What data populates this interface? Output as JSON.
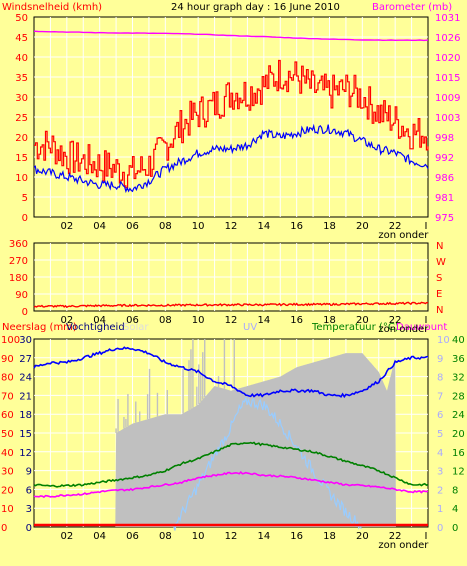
{
  "colors": {
    "background": "#ffff99",
    "plot_background": "#ffff99",
    "grid": "#ffffff",
    "frame": "#000000",
    "wind": "#0000ff",
    "gust": "#ff0000",
    "barometer": "#ff00ff",
    "humidity": "#0000ff",
    "rain": "#ff0000",
    "temperature": "#008000",
    "dewpoint": "#ff00ff",
    "solar": "#c0c0c0",
    "uv": "#99ccff",
    "wind_direction": "#ff0000",
    "left_axis_text": "#ff0000",
    "mid_axis_text": "#000080",
    "right_axis_text": "#ff00ff",
    "temp_axis_text": "#008000",
    "uv_title": "#aaaaff",
    "solar_title": "#dddddd"
  },
  "chart_data": [
    {
      "id": "wind-baro",
      "type": "line",
      "title": "24 hour graph day : 16 June 2010",
      "left_label": "Windsnelheid (kmh)",
      "right_label": "Barometer (mb)",
      "left_ticks": [
        0,
        5,
        10,
        15,
        20,
        25,
        30,
        35,
        40,
        45,
        50
      ],
      "left_range": [
        0,
        50
      ],
      "right_ticks": [
        975,
        981,
        986,
        992,
        998,
        1003,
        1009,
        1015,
        1020,
        1026,
        1031
      ],
      "right_range": [
        975,
        1031
      ],
      "x_ticks": [
        "02",
        "04",
        "06",
        "08",
        "10",
        "12",
        "14",
        "16",
        "18",
        "20",
        "22",
        "I"
      ],
      "x_note": "zon onder",
      "series": [
        {
          "key": "wind_avg",
          "axis": "left",
          "hours": [
            0,
            1,
            2,
            3,
            4,
            5,
            6,
            7,
            8,
            9,
            10,
            11,
            12,
            13,
            14,
            15,
            16,
            17,
            18,
            19,
            20,
            21,
            22,
            23,
            24
          ],
          "values": [
            12,
            11,
            10,
            9,
            8,
            8,
            7,
            9,
            12,
            14,
            16,
            17,
            17,
            18,
            21,
            20,
            21,
            22,
            22,
            21,
            19,
            17,
            16,
            14,
            13
          ]
        },
        {
          "key": "wind_gust",
          "axis": "left",
          "hours": [
            0,
            1,
            2,
            3,
            4,
            5,
            6,
            7,
            8,
            9,
            10,
            11,
            12,
            13,
            14,
            15,
            16,
            17,
            18,
            19,
            20,
            21,
            22,
            23,
            24
          ],
          "values": [
            18,
            18,
            15,
            14,
            13,
            12,
            11,
            13,
            18,
            23,
            26,
            28,
            31,
            31,
            33,
            36,
            35,
            32,
            31,
            32,
            30,
            26,
            24,
            21,
            21
          ]
        },
        {
          "key": "barometer",
          "axis": "right",
          "hours": [
            0,
            2,
            4,
            6,
            8,
            10,
            12,
            14,
            16,
            18,
            20,
            22,
            24
          ],
          "values": [
            1027,
            1026.8,
            1026.6,
            1026.5,
            1026.4,
            1026.2,
            1025.8,
            1025.5,
            1025.1,
            1024.8,
            1024.6,
            1024.5,
            1024.5
          ]
        }
      ]
    },
    {
      "id": "wind-dir",
      "type": "line",
      "left_ticks": [
        0,
        90,
        180,
        270,
        360
      ],
      "left_range": [
        0,
        360
      ],
      "right_labels": [
        "N",
        "W",
        "S",
        "E",
        "N"
      ],
      "x_ticks": [
        "02",
        "04",
        "06",
        "08",
        "10",
        "12",
        "14",
        "16",
        "18",
        "20",
        "22",
        "I"
      ],
      "x_note": "zon onder",
      "series": [
        {
          "key": "wind_direction",
          "hours": [
            0,
            2,
            4,
            6,
            8,
            10,
            12,
            14,
            16,
            18,
            20,
            22,
            24
          ],
          "values": [
            25,
            25,
            28,
            30,
            30,
            32,
            33,
            33,
            35,
            35,
            38,
            40,
            42
          ]
        }
      ]
    },
    {
      "id": "climate",
      "type": "area",
      "labels": {
        "rain": "Neerslag (mm)",
        "humidity": "Vochtigheid",
        "solar": "Solar",
        "uv": "UV",
        "temperature": "Temperatuur (°C)",
        "dewpoint": "Dauwpunt"
      },
      "rain_ticks": [
        0,
        10,
        20,
        30,
        40,
        50,
        60,
        70,
        80,
        90,
        100
      ],
      "humidity_ticks": [
        0,
        3,
        6,
        9,
        12,
        15,
        18,
        21,
        24,
        27,
        30
      ],
      "uv_ticks": [
        0,
        1,
        2,
        3,
        4,
        5,
        6,
        7,
        8,
        9,
        10
      ],
      "temp_ticks": [
        0,
        4,
        8,
        12,
        16,
        20,
        24,
        28,
        32,
        36,
        40
      ],
      "temp_range": [
        0,
        40
      ],
      "x_ticks": [
        "02",
        "04",
        "06",
        "08",
        "10",
        "12",
        "14",
        "16",
        "18",
        "20",
        "22",
        "I"
      ],
      "x_note": "zon onder",
      "series": [
        {
          "key": "humidity",
          "axis": "temp",
          "hours": [
            0,
            1,
            2,
            3,
            4,
            5,
            6,
            7,
            8,
            9,
            10,
            11,
            12,
            13,
            14,
            15,
            16,
            17,
            18,
            19,
            20,
            21,
            22,
            23,
            24
          ],
          "values": [
            34,
            35,
            35,
            36,
            37,
            38,
            38,
            37,
            35,
            34,
            33,
            31,
            30,
            28,
            28,
            29,
            29,
            29,
            28,
            28,
            29,
            31,
            35,
            36,
            36
          ]
        },
        {
          "key": "temperature",
          "axis": "temp",
          "hours": [
            0,
            1,
            2,
            3,
            4,
            5,
            6,
            7,
            8,
            9,
            10,
            11,
            12,
            13,
            14,
            15,
            16,
            17,
            18,
            19,
            20,
            21,
            22,
            23,
            24
          ],
          "values": [
            9,
            8.7,
            8.8,
            9,
            9.5,
            10,
            10.5,
            11,
            12,
            13.5,
            14.5,
            16,
            17.5,
            18,
            17.5,
            17,
            16.5,
            16,
            15,
            14,
            13,
            12,
            10.5,
            9,
            9
          ]
        },
        {
          "key": "dewpoint",
          "axis": "temp",
          "hours": [
            0,
            1,
            2,
            3,
            4,
            5,
            6,
            7,
            8,
            9,
            10,
            11,
            12,
            13,
            14,
            15,
            16,
            17,
            18,
            19,
            20,
            21,
            22,
            23,
            24
          ],
          "values": [
            6.5,
            6.5,
            6.8,
            7,
            7.5,
            7.8,
            8,
            8.5,
            9,
            9.5,
            10.5,
            11,
            11.5,
            11.5,
            11,
            10.8,
            10.5,
            10,
            9.5,
            9,
            8.8,
            8.5,
            8,
            7.5,
            7.5
          ]
        },
        {
          "key": "rain",
          "axis": "temp",
          "hours": [
            0,
            24
          ],
          "values": [
            0,
            0
          ]
        },
        {
          "key": "solar",
          "axis": "temp",
          "hours": [
            0,
            4.9,
            5,
            6,
            7,
            8,
            9,
            10,
            11,
            12,
            13,
            14,
            15,
            16,
            17,
            18,
            19,
            20,
            21,
            21.5,
            22,
            22.1
          ],
          "values": [
            0,
            0,
            20,
            22,
            23,
            24,
            24,
            26,
            30,
            29,
            30,
            31,
            32,
            34,
            35,
            36,
            37,
            37,
            33,
            29,
            36,
            0
          ]
        },
        {
          "key": "uv",
          "axis": "uv",
          "hours": [
            8.5,
            9,
            10,
            11,
            12,
            12.5,
            13,
            14,
            15,
            16,
            17,
            18,
            19,
            20
          ],
          "values": [
            0,
            0.7,
            2.2,
            3.8,
            5.3,
            6.2,
            6.7,
            6.5,
            5.5,
            4.3,
            3,
            1.8,
            0.8,
            0
          ]
        }
      ]
    }
  ]
}
